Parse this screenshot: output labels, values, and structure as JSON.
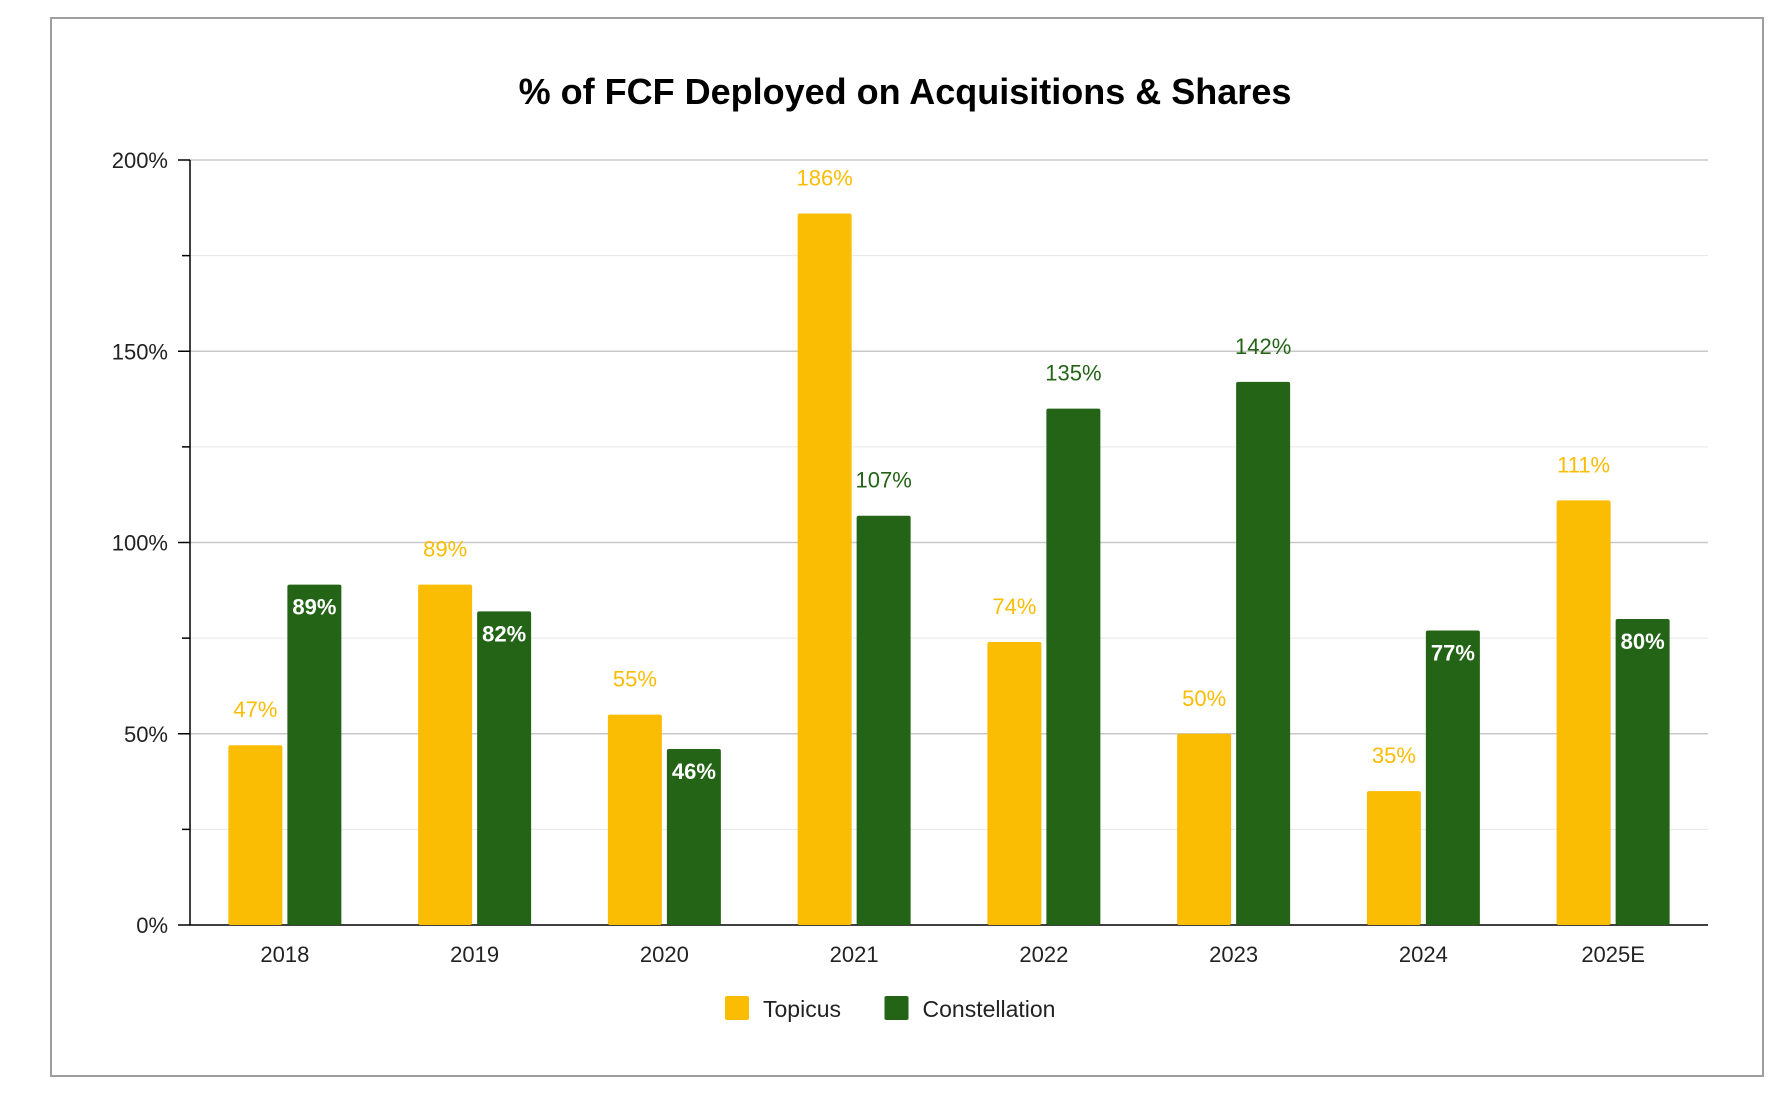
{
  "chart_data": {
    "type": "bar",
    "title": "% of FCF Deployed on Acquisitions & Shares",
    "xlabel": "",
    "ylabel": "",
    "categories": [
      "2018",
      "2019",
      "2020",
      "2021",
      "2022",
      "2023",
      "2024",
      "2025E"
    ],
    "series": [
      {
        "name": "Topicus",
        "color": "#FBBC04",
        "values": [
          47,
          89,
          55,
          186,
          74,
          50,
          35,
          111
        ],
        "labels": [
          "47%",
          "89%",
          "55%",
          "186%",
          "74%",
          "50%",
          "35%",
          "111%"
        ]
      },
      {
        "name": "Constellation",
        "color": "#246417",
        "values": [
          89,
          82,
          46,
          107,
          135,
          142,
          77,
          80
        ],
        "labels": [
          "89%",
          "82%",
          "46%",
          "107%",
          "135%",
          "142%",
          "77%",
          "80%"
        ]
      }
    ],
    "ylim": [
      0,
      200
    ],
    "yticks": [
      0,
      50,
      100,
      150,
      200
    ],
    "ytick_labels": [
      "0%",
      "50%",
      "100%",
      "150%",
      "200%"
    ],
    "grid": true,
    "legend_position": "bottom-center"
  }
}
